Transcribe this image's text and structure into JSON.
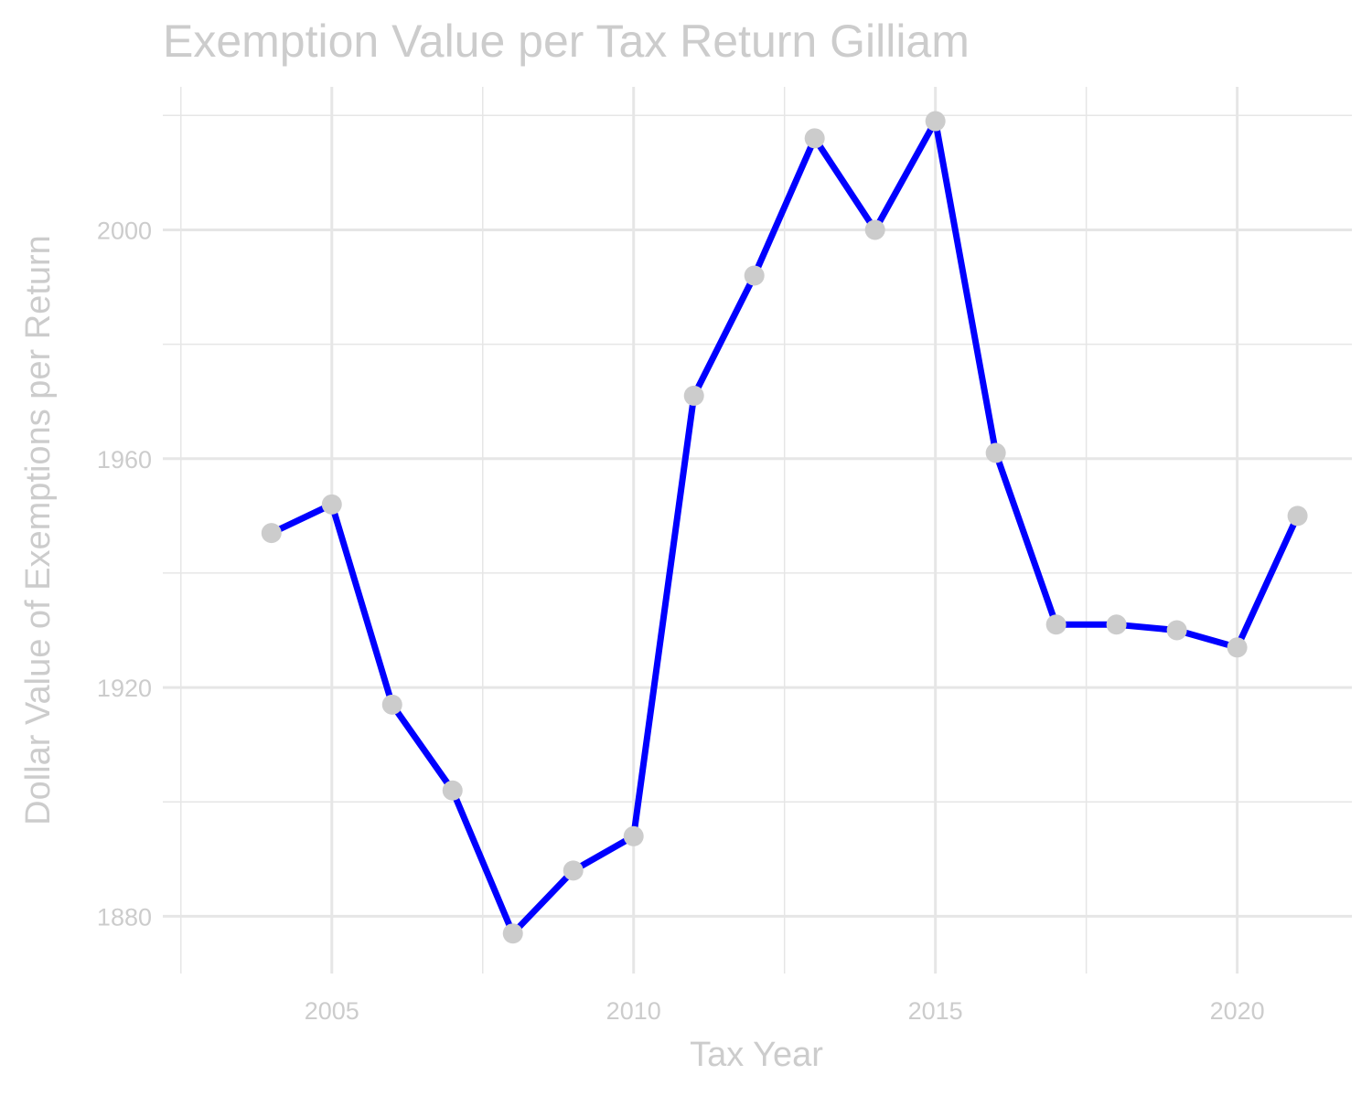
{
  "chart_data": {
    "type": "line",
    "title": "Exemption Value per Tax Return Gilliam",
    "xlabel": "Tax Year",
    "ylabel": "Dollar Value of Exemptions per Return",
    "x": [
      2004,
      2005,
      2006,
      2007,
      2008,
      2009,
      2010,
      2011,
      2012,
      2013,
      2014,
      2015,
      2016,
      2017,
      2018,
      2019,
      2020,
      2021
    ],
    "values": [
      1947,
      1952,
      1917,
      1902,
      1877,
      1888,
      1894,
      1971,
      1992,
      2016,
      2000,
      2019,
      1961,
      1931,
      1931,
      1930,
      1927,
      1950
    ],
    "xlim": [
      2002.2,
      2021.9
    ],
    "ylim": [
      1870,
      2025
    ],
    "x_ticks": [
      "2005",
      "2010",
      "2015",
      "2020"
    ],
    "y_ticks": [
      "1880",
      "1920",
      "1960",
      "2000"
    ],
    "grid": true,
    "colors": {
      "line": "#0000ff",
      "points": "#cccccc",
      "text": "#cccccc",
      "grid": "#e6e6e6"
    }
  }
}
